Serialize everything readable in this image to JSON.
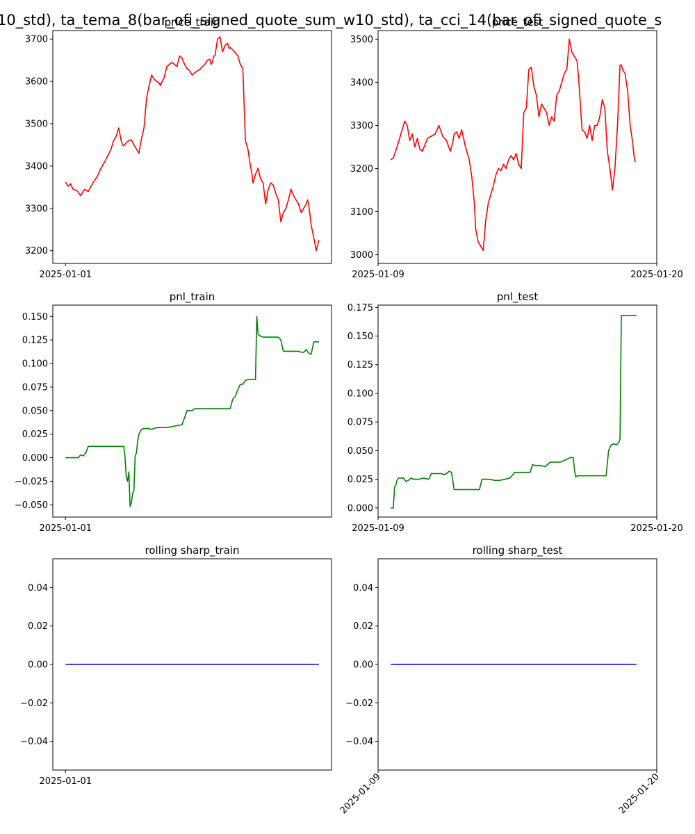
{
  "suptitle": "10_std), ta_tema_8(bar_ofi_signed_quote_sum_w10_std), ta_cci_14(bar_ofi_signed_quote_s",
  "chart_data": [
    {
      "id": "price_train",
      "type": "line",
      "title": "price_train",
      "color": "#ff0000",
      "ylim": [
        3170,
        3720
      ],
      "yticks": [
        3200,
        3300,
        3400,
        3500,
        3600,
        3700
      ],
      "yticklabels": [
        "3200",
        "3300",
        "3400",
        "3500",
        "3600",
        "3700"
      ],
      "xlim": [
        -0.05,
        1.05
      ],
      "xticks": [
        0
      ],
      "xticklabels": [
        "2025-01-01"
      ],
      "xrot": 0,
      "series": [
        {
          "x": [
            0.0,
            0.01,
            0.02,
            0.03,
            0.045,
            0.06,
            0.075,
            0.09,
            0.11,
            0.125,
            0.14,
            0.155,
            0.17,
            0.18,
            0.19,
            0.2,
            0.21,
            0.22,
            0.225,
            0.23,
            0.24,
            0.25,
            0.26,
            0.27,
            0.28,
            0.29,
            0.3,
            0.31,
            0.32,
            0.33,
            0.34,
            0.35,
            0.36,
            0.37,
            0.375,
            0.38,
            0.39,
            0.4,
            0.41,
            0.42,
            0.43,
            0.44,
            0.45,
            0.46,
            0.47,
            0.48,
            0.49,
            0.5,
            0.51,
            0.52,
            0.53,
            0.54,
            0.55,
            0.56,
            0.57,
            0.575,
            0.58,
            0.585,
            0.59,
            0.6,
            0.61,
            0.62,
            0.63,
            0.64,
            0.645,
            0.65,
            0.66,
            0.67,
            0.68,
            0.69,
            0.7,
            0.71,
            0.72,
            0.73,
            0.735,
            0.74,
            0.75,
            0.76,
            0.77,
            0.78,
            0.79,
            0.8,
            0.81,
            0.82,
            0.83,
            0.84,
            0.85,
            0.86,
            0.87,
            0.88,
            0.89,
            0.9,
            0.91,
            0.92,
            0.93,
            0.94,
            0.95,
            0.955,
            0.96,
            0.97,
            0.98,
            0.99,
            1.0
          ],
          "y": [
            3362,
            3352,
            3358,
            3345,
            3342,
            3330,
            3345,
            3340,
            3362,
            3375,
            3395,
            3410,
            3428,
            3440,
            3460,
            3470,
            3490,
            3460,
            3450,
            3448,
            3455,
            3460,
            3462,
            3450,
            3440,
            3430,
            3465,
            3490,
            3560,
            3590,
            3615,
            3605,
            3600,
            3596,
            3590,
            3598,
            3610,
            3635,
            3640,
            3645,
            3640,
            3635,
            3660,
            3655,
            3640,
            3630,
            3625,
            3615,
            3620,
            3625,
            3628,
            3635,
            3640,
            3650,
            3652,
            3640,
            3645,
            3660,
            3660,
            3700,
            3705,
            3670,
            3685,
            3690,
            3678,
            3680,
            3675,
            3668,
            3660,
            3640,
            3630,
            3460,
            3440,
            3400,
            3385,
            3360,
            3380,
            3395,
            3370,
            3360,
            3310,
            3345,
            3360,
            3355,
            3335,
            3320,
            3268,
            3290,
            3300,
            3320,
            3345,
            3330,
            3320,
            3310,
            3290,
            3300,
            3310,
            3320,
            3310,
            3260,
            3230,
            3200,
            3225
          ]
        }
      ]
    },
    {
      "id": "price_test",
      "type": "line",
      "title": "price_test",
      "color": "#ff0000",
      "ylim": [
        2980,
        3520
      ],
      "yticks": [
        3000,
        3100,
        3200,
        3300,
        3400,
        3500
      ],
      "yticklabels": [
        "3000",
        "3100",
        "3200",
        "3300",
        "3400",
        "3500"
      ],
      "xlim": [
        0,
        11
      ],
      "xticks": [
        0,
        11
      ],
      "xticklabels": [
        "2025-01-09",
        "2025-01-20"
      ],
      "xrot": 0,
      "series": [
        {
          "x": [
            0.5,
            0.6,
            0.75,
            0.85,
            0.95,
            1.05,
            1.15,
            1.25,
            1.35,
            1.45,
            1.55,
            1.65,
            1.75,
            1.85,
            1.95,
            2.1,
            2.25,
            2.4,
            2.55,
            2.7,
            2.85,
            2.95,
            3.0,
            3.1,
            3.2,
            3.3,
            3.45,
            3.6,
            3.7,
            3.8,
            3.85,
            3.95,
            4.05,
            4.15,
            4.25,
            4.35,
            4.45,
            4.55,
            4.65,
            4.75,
            4.85,
            4.95,
            5.05,
            5.15,
            5.25,
            5.35,
            5.45,
            5.55,
            5.65,
            5.75,
            5.85,
            5.95,
            6.05,
            6.15,
            6.25,
            6.35,
            6.45,
            6.55,
            6.65,
            6.75,
            6.85,
            6.95,
            7.05,
            7.15,
            7.25,
            7.35,
            7.45,
            7.55,
            7.65,
            7.75,
            7.85,
            7.9,
            7.95,
            8.05,
            8.15,
            8.25,
            8.35,
            8.45,
            8.55,
            8.65,
            8.75,
            8.85,
            8.95,
            9.05,
            9.15,
            9.25,
            9.35,
            9.45,
            9.55,
            9.6,
            9.65,
            9.75,
            9.85,
            9.95,
            10.05,
            10.1,
            10.15
          ],
          "y": [
            3220,
            3225,
            3250,
            3270,
            3290,
            3310,
            3300,
            3265,
            3280,
            3250,
            3270,
            3245,
            3240,
            3255,
            3270,
            3275,
            3280,
            3300,
            3275,
            3265,
            3240,
            3260,
            3280,
            3285,
            3270,
            3290,
            3250,
            3220,
            3180,
            3120,
            3060,
            3030,
            3020,
            3010,
            3080,
            3120,
            3140,
            3160,
            3185,
            3200,
            3195,
            3210,
            3200,
            3220,
            3230,
            3220,
            3235,
            3210,
            3200,
            3330,
            3340,
            3430,
            3435,
            3390,
            3370,
            3320,
            3350,
            3340,
            3330,
            3300,
            3320,
            3310,
            3370,
            3380,
            3400,
            3420,
            3430,
            3500,
            3470,
            3460,
            3450,
            3420,
            3380,
            3290,
            3285,
            3270,
            3300,
            3265,
            3300,
            3300,
            3320,
            3360,
            3340,
            3240,
            3200,
            3150,
            3200,
            3300,
            3440,
            3440,
            3430,
            3420,
            3380,
            3300,
            3260,
            3230,
            3215
          ]
        }
      ]
    },
    {
      "id": "pnl_train",
      "type": "line",
      "title": "pnl_train",
      "color": "#008000",
      "ylim": [
        -0.063,
        0.162
      ],
      "yticks": [
        -0.05,
        -0.025,
        0.0,
        0.025,
        0.05,
        0.075,
        0.1,
        0.125,
        0.15
      ],
      "yticklabels": [
        "−0.050",
        "−0.025",
        "0.000",
        "0.025",
        "0.050",
        "0.075",
        "0.100",
        "0.125",
        "0.150"
      ],
      "xlim": [
        -0.05,
        1.05
      ],
      "xticks": [
        0
      ],
      "xticklabels": [
        "2025-01-01"
      ],
      "xrot": 0,
      "series": [
        {
          "x": [
            0.0,
            0.05,
            0.06,
            0.07,
            0.08,
            0.09,
            0.1,
            0.12,
            0.15,
            0.2,
            0.23,
            0.235,
            0.24,
            0.245,
            0.25,
            0.255,
            0.26,
            0.265,
            0.27,
            0.275,
            0.28,
            0.285,
            0.29,
            0.3,
            0.31,
            0.32,
            0.33,
            0.34,
            0.36,
            0.38,
            0.4,
            0.42,
            0.44,
            0.46,
            0.48,
            0.5,
            0.51,
            0.52,
            0.53,
            0.55,
            0.6,
            0.65,
            0.66,
            0.67,
            0.68,
            0.69,
            0.7,
            0.71,
            0.72,
            0.73,
            0.74,
            0.75,
            0.755,
            0.76,
            0.765,
            0.77,
            0.78,
            0.79,
            0.8,
            0.82,
            0.84,
            0.85,
            0.86,
            0.88,
            0.9,
            0.92,
            0.93,
            0.94,
            0.945,
            0.95,
            0.96,
            0.97,
            0.98,
            0.99,
            1.0
          ],
          "y": [
            0.0,
            0.0,
            0.003,
            0.002,
            0.005,
            0.012,
            0.012,
            0.012,
            0.012,
            0.012,
            0.012,
            0.0,
            -0.02,
            -0.025,
            -0.015,
            -0.052,
            -0.048,
            -0.038,
            -0.035,
            0.002,
            0.005,
            0.018,
            0.025,
            0.03,
            0.031,
            0.031,
            0.031,
            0.03,
            0.032,
            0.032,
            0.032,
            0.033,
            0.034,
            0.035,
            0.05,
            0.05,
            0.052,
            0.052,
            0.052,
            0.052,
            0.052,
            0.052,
            0.062,
            0.065,
            0.072,
            0.078,
            0.078,
            0.082,
            0.083,
            0.083,
            0.083,
            0.083,
            0.15,
            0.131,
            0.13,
            0.129,
            0.128,
            0.128,
            0.128,
            0.128,
            0.128,
            0.125,
            0.113,
            0.113,
            0.113,
            0.113,
            0.112,
            0.112,
            0.113,
            0.115,
            0.111,
            0.11,
            0.123,
            0.123,
            0.123
          ]
        }
      ]
    },
    {
      "id": "pnl_test",
      "type": "line",
      "title": "pnl_test",
      "color": "#008000",
      "ylim": [
        -0.008,
        0.177
      ],
      "yticks": [
        0.0,
        0.025,
        0.05,
        0.075,
        0.1,
        0.125,
        0.15,
        0.175
      ],
      "yticklabels": [
        "0.000",
        "0.025",
        "0.050",
        "0.075",
        "0.100",
        "0.125",
        "0.150",
        "0.175"
      ],
      "xlim": [
        0,
        11
      ],
      "xticks": [
        0,
        11
      ],
      "xticklabels": [
        "2025-01-09",
        "2025-01-20"
      ],
      "xrot": 0,
      "series": [
        {
          "x": [
            0.5,
            0.6,
            0.65,
            0.7,
            0.75,
            0.8,
            0.9,
            1.0,
            1.1,
            1.2,
            1.3,
            1.4,
            1.5,
            1.6,
            1.8,
            2.0,
            2.1,
            2.2,
            2.3,
            2.5,
            2.6,
            2.7,
            2.8,
            2.9,
            3.0,
            3.1,
            3.2,
            3.4,
            3.6,
            3.8,
            4.0,
            4.1,
            4.2,
            4.4,
            4.6,
            4.8,
            5.0,
            5.2,
            5.4,
            5.6,
            5.8,
            6.0,
            6.1,
            6.2,
            6.4,
            6.6,
            6.8,
            7.0,
            7.2,
            7.4,
            7.6,
            7.7,
            7.75,
            7.8,
            7.85,
            7.9,
            8.0,
            8.2,
            8.4,
            8.6,
            8.8,
            9.0,
            9.1,
            9.2,
            9.3,
            9.4,
            9.5,
            9.55,
            9.6,
            9.65,
            9.7,
            9.8,
            10.0,
            10.2
          ],
          "y": [
            0.0,
            0.0,
            0.018,
            0.02,
            0.024,
            0.026,
            0.026,
            0.026,
            0.023,
            0.024,
            0.026,
            0.025,
            0.025,
            0.025,
            0.026,
            0.025,
            0.03,
            0.03,
            0.03,
            0.03,
            0.029,
            0.03,
            0.032,
            0.031,
            0.016,
            0.016,
            0.016,
            0.016,
            0.016,
            0.016,
            0.016,
            0.025,
            0.025,
            0.025,
            0.024,
            0.024,
            0.025,
            0.026,
            0.031,
            0.031,
            0.031,
            0.031,
            0.038,
            0.037,
            0.037,
            0.036,
            0.04,
            0.04,
            0.04,
            0.042,
            0.044,
            0.044,
            0.034,
            0.027,
            0.028,
            0.028,
            0.028,
            0.028,
            0.028,
            0.028,
            0.028,
            0.028,
            0.05,
            0.055,
            0.056,
            0.055,
            0.057,
            0.06,
            0.168,
            0.168,
            0.168,
            0.168,
            0.168,
            0.168
          ]
        }
      ]
    },
    {
      "id": "rolling_sharp_train",
      "type": "line",
      "title": "rolling sharp_train",
      "color": "#0000ff",
      "ylim": [
        -0.055,
        0.055
      ],
      "yticks": [
        -0.04,
        -0.02,
        0.0,
        0.02,
        0.04
      ],
      "yticklabels": [
        "−0.04",
        "−0.02",
        "0.00",
        "0.02",
        "0.04"
      ],
      "xlim": [
        -0.05,
        1.05
      ],
      "xticks": [
        0
      ],
      "xticklabels": [
        "2025-01-01"
      ],
      "xrot": 0,
      "series": [
        {
          "x": [
            0,
            1
          ],
          "y": [
            0,
            0
          ]
        }
      ]
    },
    {
      "id": "rolling_sharp_test",
      "type": "line",
      "title": "rolling sharp_test",
      "color": "#0000ff",
      "ylim": [
        -0.055,
        0.055
      ],
      "yticks": [
        -0.04,
        -0.02,
        0.0,
        0.02,
        0.04
      ],
      "yticklabels": [
        "−0.04",
        "−0.02",
        "0.00",
        "0.02",
        "0.04"
      ],
      "xlim": [
        0,
        11
      ],
      "xticks": [
        0,
        11
      ],
      "xticklabels": [
        "2025-01-09",
        "2025-01-20"
      ],
      "xrot": -45,
      "series": [
        {
          "x": [
            0.5,
            10.2
          ],
          "y": [
            0,
            0
          ]
        }
      ]
    }
  ]
}
